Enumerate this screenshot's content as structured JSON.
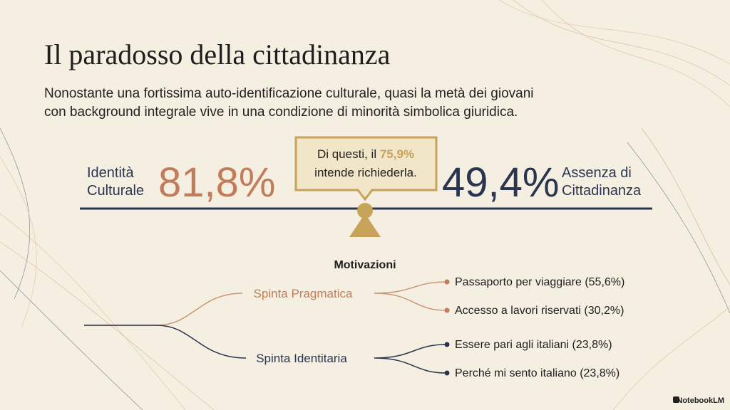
{
  "header": {
    "title": "Il paradosso della cittadinanza",
    "subtitle": [
      "Nonostante una fortissima auto-identificazione culturale, quasi la metà dei giovani",
      "con background integrale vive in una condizione di minorità simbolica giuridica."
    ]
  },
  "balance": {
    "left": {
      "label": [
        "Identità",
        "Culturale"
      ],
      "value": "81,8%"
    },
    "right": {
      "label": [
        "Assenza di",
        "Cittadinanza"
      ],
      "value": "49,4%"
    },
    "callout": {
      "prefix": "Di questi, il",
      "highlight": "75,9%",
      "suffix": "intende richiederla."
    }
  },
  "motivations": {
    "heading": "Motivazioni",
    "branches": [
      {
        "label": "Spinta Pragmatica",
        "items": [
          "Passaporto per viaggiare (55,6%)",
          "Accesso a lavori riservati (30,2%)"
        ]
      },
      {
        "label": "Spinta Identitaria",
        "items": [
          "Essere pari agli italiani (23,8%)",
          "Perché mi sento italiano (23,8%)"
        ]
      }
    ]
  },
  "brand": "NotebookLM"
}
